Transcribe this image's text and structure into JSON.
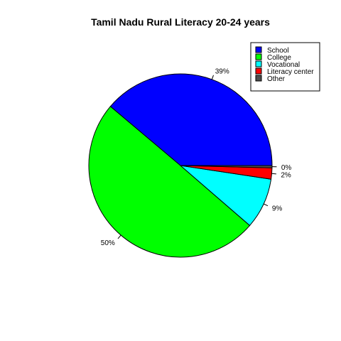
{
  "chart_data": {
    "type": "pie",
    "title": "Tamil Nadu Rural Literacy 20-24 years",
    "slices": [
      {
        "label": "School",
        "value": 39,
        "pct_label": "39%",
        "color": "#0000FF"
      },
      {
        "label": "College",
        "value": 50,
        "pct_label": "50%",
        "color": "#00FF00"
      },
      {
        "label": "Vocational",
        "value": 9,
        "pct_label": "9%",
        "color": "#00FFFF"
      },
      {
        "label": "Literacy center",
        "value": 2,
        "pct_label": "2%",
        "color": "#FF0000"
      },
      {
        "label": "Other",
        "value": 0.4,
        "pct_label": "0%",
        "color": "#4D4D4D"
      }
    ],
    "start": "3 o'clock",
    "direction": "counterclockwise",
    "legend_position": "top-right"
  }
}
